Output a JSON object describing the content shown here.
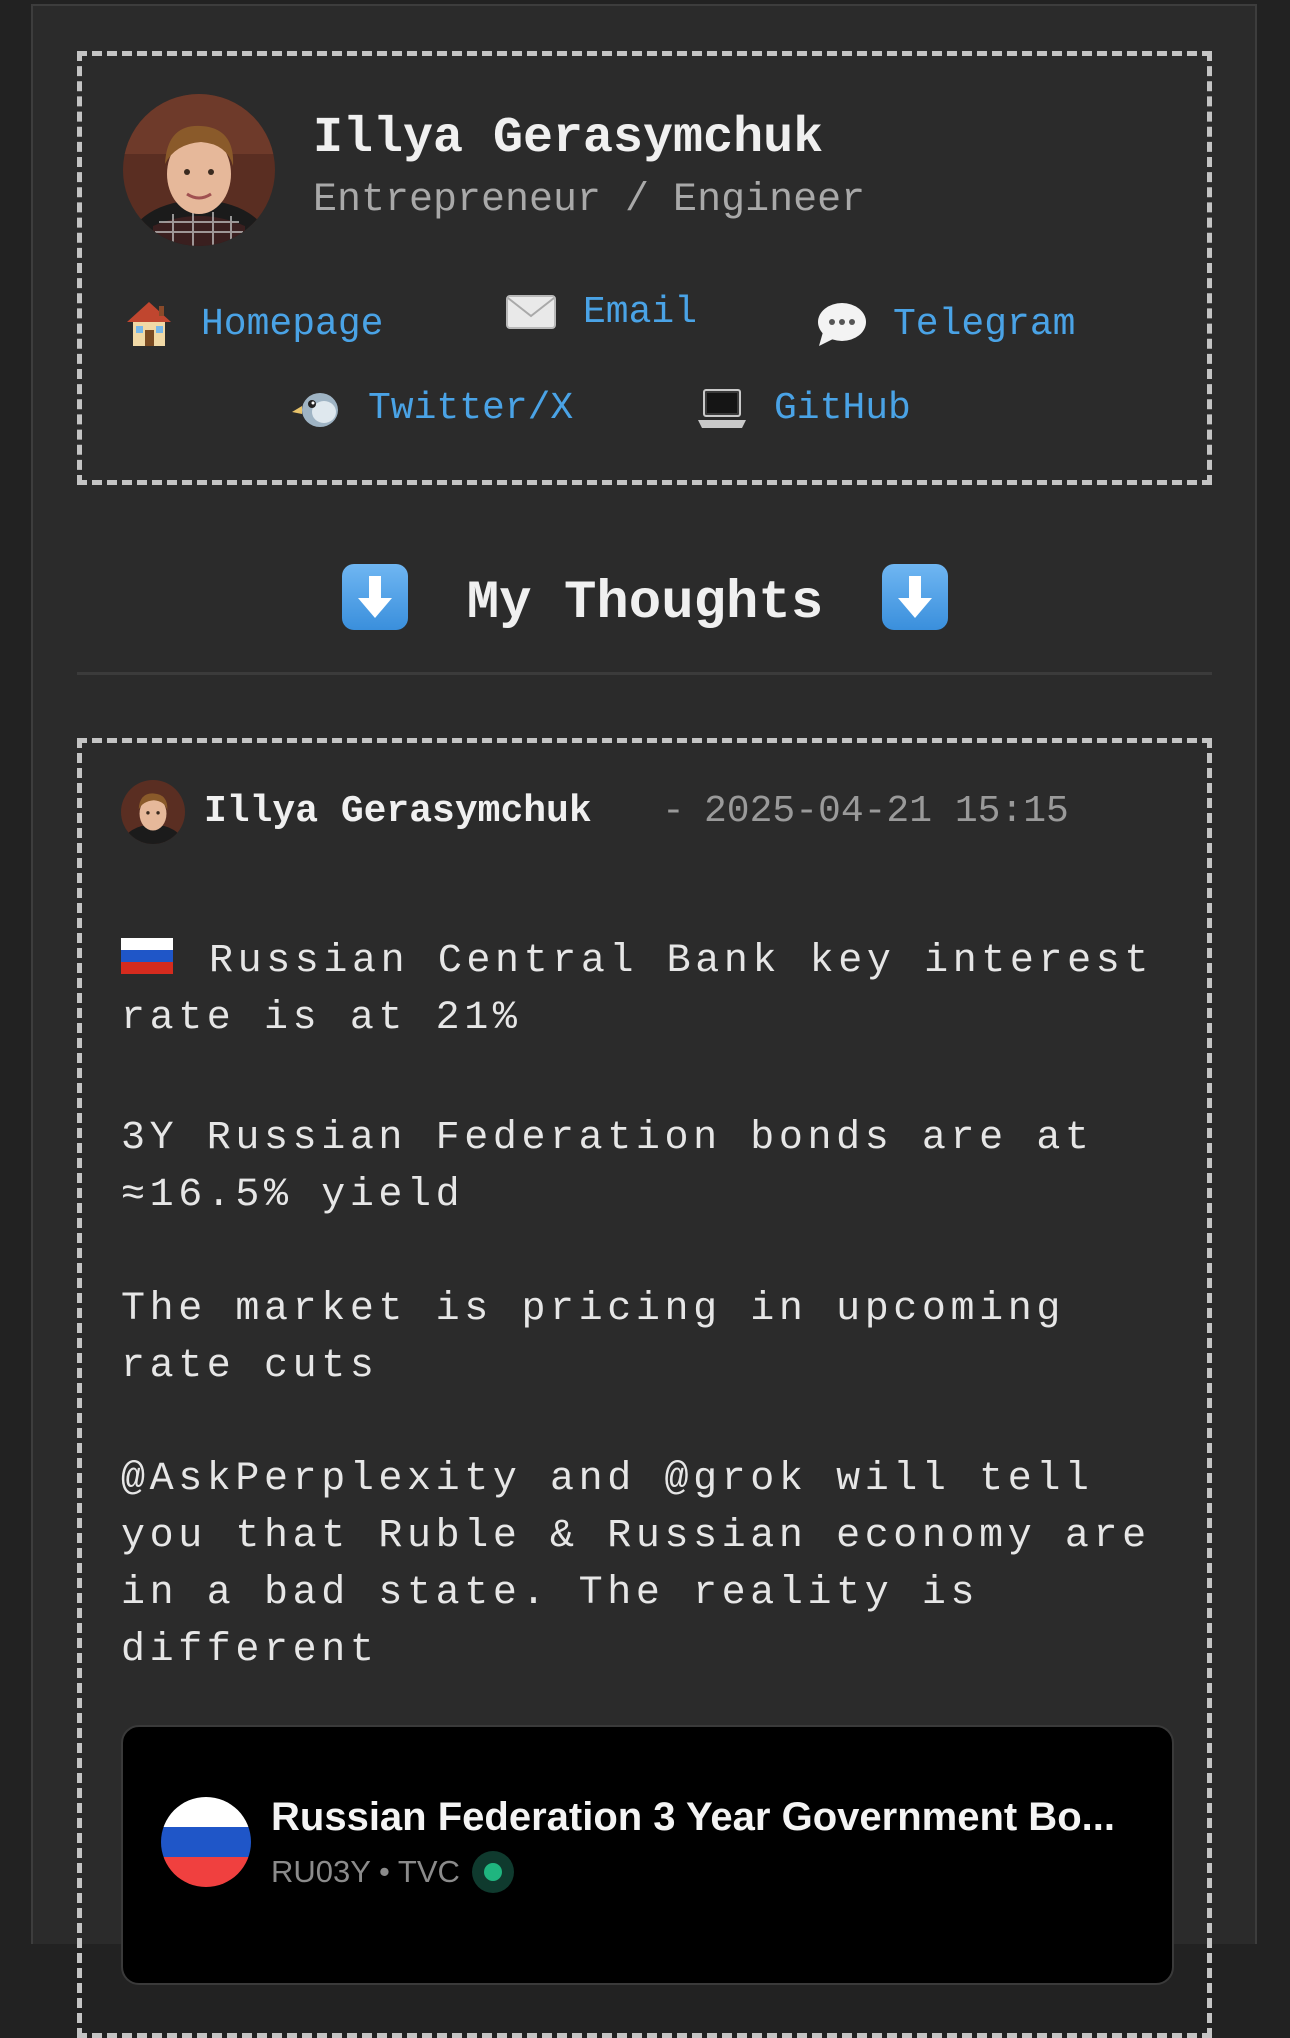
{
  "profile": {
    "name": "Illya Gerasymchuk",
    "role": "Entrepreneur / Engineer",
    "avatar_alt": "avatar"
  },
  "links": [
    {
      "label": "Homepage",
      "icon": "house-icon"
    },
    {
      "label": "Email",
      "icon": "envelope-icon"
    },
    {
      "label": "Telegram",
      "icon": "speech-bubble-icon"
    },
    {
      "label": "Twitter/X",
      "icon": "bird-icon"
    },
    {
      "label": "GitHub",
      "icon": "laptop-icon"
    }
  ],
  "section": {
    "title": "My Thoughts",
    "icon": "down-arrow-icon"
  },
  "post": {
    "author": "Illya Gerasymchuk",
    "separator": "-",
    "datetime": "2025-04-21 15:15",
    "flag_icon": "russia-flag-icon",
    "paragraphs": [
      "Russian Central Bank key interest rate is at 21%",
      "3Y Russian Federation bonds are at ≈16.5% yield",
      "The market is pricing in upcoming rate cuts",
      "@AskPerplexity and @grok will tell you that Ruble & Russian economy are in a bad state. The reality is different"
    ],
    "embed": {
      "title": "Russian Federation 3 Year Government Bo...",
      "subtitle": "RU03Y • TVC",
      "status_color": "#1fb57f"
    }
  },
  "colors": {
    "background": "#222222",
    "page": "#2b2b2b",
    "link": "#4aa3e6",
    "dashed_border": "#c4c4c4"
  }
}
